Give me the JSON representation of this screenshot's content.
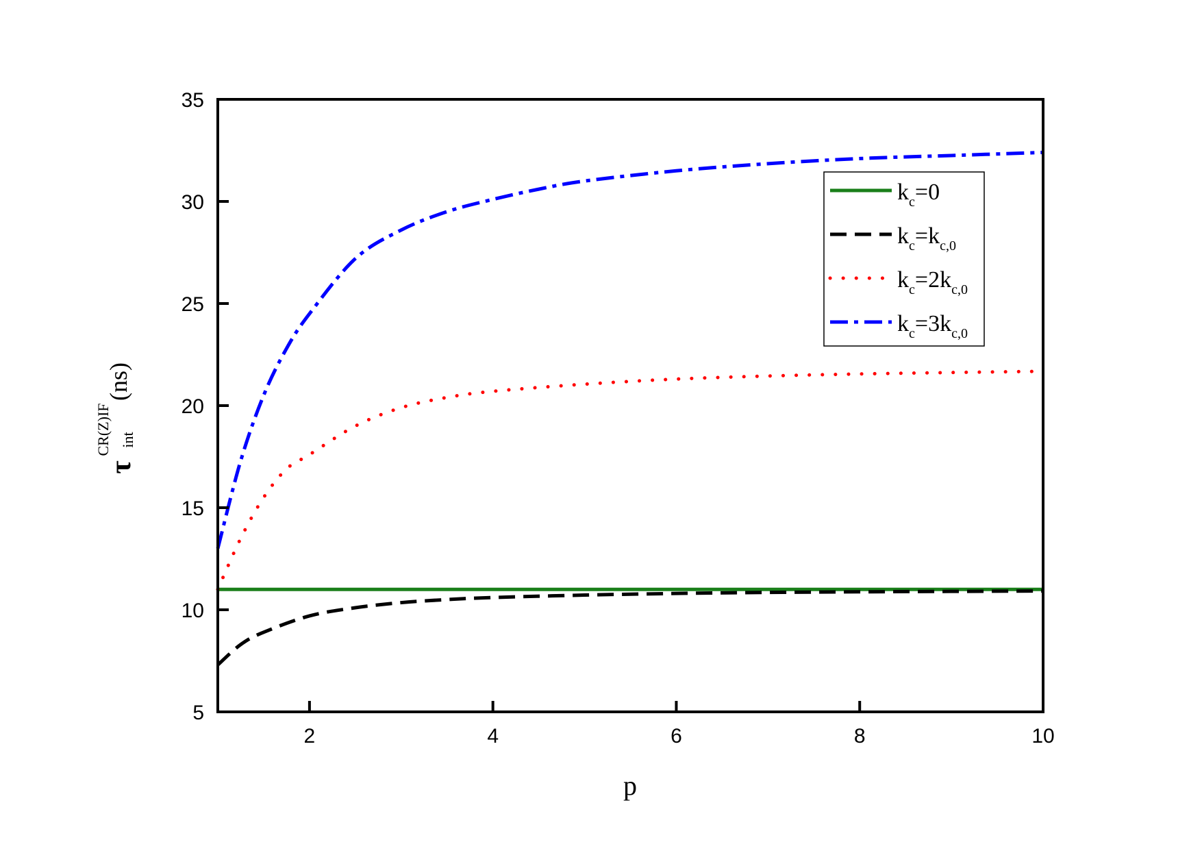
{
  "chart_data": {
    "type": "line",
    "title": "",
    "xlabel": "p",
    "ylabel": {
      "symbol": "τ",
      "superscript": "CR(Z)IF",
      "subscript": "int",
      "unit": "(ns)"
    },
    "xlim": [
      1,
      10
    ],
    "ylim": [
      5,
      35
    ],
    "xticks": [
      2,
      4,
      6,
      8,
      10
    ],
    "yticks": [
      5,
      10,
      15,
      20,
      25,
      30,
      35
    ],
    "grid": false,
    "legend_position": "top-right",
    "series": [
      {
        "name": "k_c=0",
        "legend": {
          "base": "k",
          "sub": "c",
          "rest": "=0",
          "sub2": ""
        },
        "color": "#1a7f1a",
        "style": "solid",
        "x": [
          1,
          2,
          3,
          4,
          5,
          6,
          7,
          8,
          9,
          10
        ],
        "y": [
          11.0,
          11.0,
          11.0,
          11.0,
          11.0,
          11.0,
          11.0,
          11.0,
          11.0,
          11.0
        ]
      },
      {
        "name": "k_c=k_c,0",
        "legend": {
          "base": "k",
          "sub": "c",
          "rest": "=k",
          "sub2": "c,0"
        },
        "color": "#000000",
        "style": "dash",
        "x": [
          1,
          1.25,
          1.5,
          2,
          2.5,
          3,
          3.5,
          4,
          5,
          6,
          7,
          8,
          9,
          10
        ],
        "y": [
          7.3,
          8.3,
          8.9,
          9.7,
          10.1,
          10.35,
          10.5,
          10.6,
          10.72,
          10.8,
          10.85,
          10.88,
          10.9,
          10.92
        ]
      },
      {
        "name": "k_c=2k_c,0",
        "legend": {
          "base": "k",
          "sub": "c",
          "rest": "=2k",
          "sub2": "c,0"
        },
        "color": "#ff0000",
        "style": "dot",
        "x": [
          1,
          1.25,
          1.5,
          1.75,
          2,
          2.5,
          3,
          3.5,
          4,
          5,
          6,
          7,
          8,
          9,
          10
        ],
        "y": [
          11.0,
          13.5,
          15.5,
          16.9,
          17.6,
          19.0,
          19.9,
          20.4,
          20.7,
          21.05,
          21.3,
          21.45,
          21.55,
          21.62,
          21.68
        ]
      },
      {
        "name": "k_c=3k_c,0",
        "legend": {
          "base": "k",
          "sub": "c",
          "rest": "=3k",
          "sub2": "c,0"
        },
        "color": "#0000ff",
        "style": "dashdot",
        "x": [
          1,
          1.25,
          1.5,
          1.75,
          2,
          2.5,
          3,
          3.5,
          4,
          4.5,
          5,
          6,
          7,
          8,
          9,
          10
        ],
        "y": [
          13.0,
          17.3,
          20.5,
          22.8,
          24.5,
          27.2,
          28.6,
          29.5,
          30.1,
          30.6,
          31.0,
          31.5,
          31.85,
          32.1,
          32.25,
          32.4
        ]
      }
    ]
  }
}
